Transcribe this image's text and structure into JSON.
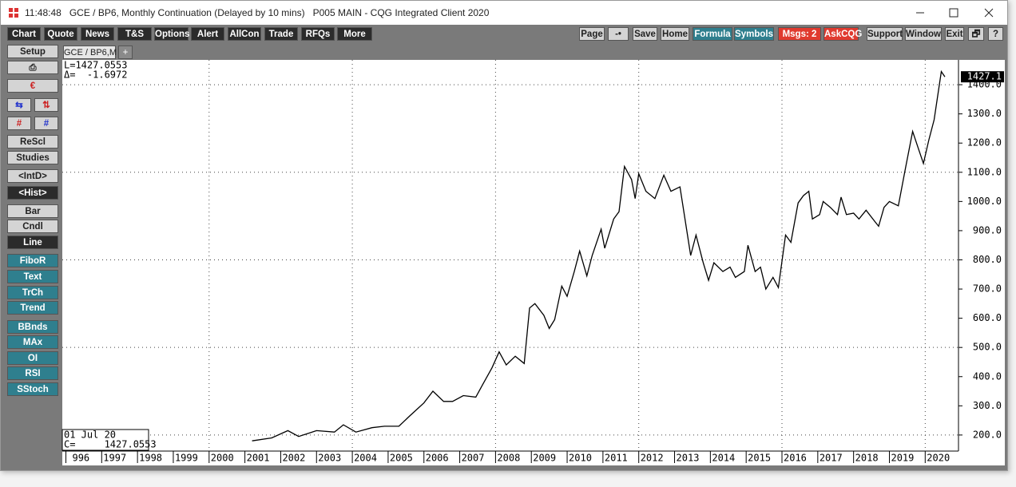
{
  "window": {
    "title": "11:48:48   GCE / BP6, Monthly Continuation (Delayed by 10 mins)   P005 MAIN - CQG Integrated Client 2020"
  },
  "toolbar": {
    "left": [
      "Chart",
      "Quote",
      "News",
      "T&S",
      "Options",
      "Alert",
      "AllCon",
      "Trade",
      "RFQs",
      "More"
    ],
    "right": [
      "Page",
      "Save",
      "Home",
      "Formula",
      "Symbols",
      "Msgs: 2",
      "AskCQG",
      "Support",
      "Window",
      "Exit",
      "?"
    ]
  },
  "sidebar": {
    "buttons": [
      "Setup",
      "ReScl",
      "Studies",
      "<IntD>",
      "<Hist>",
      "Bar",
      "Cndl",
      "Line",
      "FiboR",
      "Text",
      "TrCh",
      "Trend",
      "BBnds",
      "MAx",
      "OI",
      "RSI",
      "SStoch"
    ]
  },
  "tabs": [
    "GCE / BP6,M",
    "+"
  ],
  "chart_data": {
    "type": "line",
    "info_top": [
      "L=1427.0553",
      "Δ=  -1.6972"
    ],
    "info_bottom": [
      "01 Jul 20",
      "C=     1427.0553"
    ],
    "last_label": "1427.1",
    "x": [
      2001.2,
      2001.75,
      2002.2,
      2002.5,
      2003.0,
      2003.5,
      2003.75,
      2004.1,
      2004.55,
      2004.9,
      2005.3,
      2005.6,
      2006.0,
      2006.25,
      2006.55,
      2006.8,
      2007.1,
      2007.45,
      2007.65,
      2007.9,
      2008.1,
      2008.3,
      2008.55,
      2008.8,
      2008.95,
      2009.1,
      2009.35,
      2009.5,
      2009.65,
      2009.85,
      2010.0,
      2010.2,
      2010.35,
      2010.55,
      2010.7,
      2010.95,
      2011.05,
      2011.3,
      2011.45,
      2011.6,
      2011.8,
      2011.9,
      2012.0,
      2012.2,
      2012.45,
      2012.7,
      2012.9,
      2013.15,
      2013.45,
      2013.6,
      2013.8,
      2013.95,
      2014.1,
      2014.35,
      2014.55,
      2014.7,
      2014.95,
      2015.05,
      2015.25,
      2015.4,
      2015.55,
      2015.75,
      2015.9,
      2016.1,
      2016.25,
      2016.45,
      2016.6,
      2016.75,
      2016.85,
      2017.05,
      2017.15,
      2017.35,
      2017.55,
      2017.65,
      2017.8,
      2018.0,
      2018.15,
      2018.35,
      2018.6,
      2018.7,
      2018.85,
      2019.0,
      2019.25,
      2019.45,
      2019.65,
      2019.8,
      2019.95,
      2020.1,
      2020.25,
      2020.45,
      2020.55
    ],
    "series": [
      {
        "name": "GCE / BP6,M",
        "color": "#000000",
        "values": [
          180,
          190,
          215,
          195,
          215,
          210,
          235,
          210,
          225,
          230,
          230,
          265,
          310,
          350,
          315,
          315,
          335,
          330,
          375,
          430,
          485,
          440,
          470,
          445,
          635,
          650,
          610,
          565,
          595,
          710,
          675,
          760,
          830,
          745,
          815,
          905,
          840,
          940,
          965,
          1120,
          1075,
          1010,
          1095,
          1035,
          1010,
          1090,
          1035,
          1050,
          815,
          885,
          790,
          730,
          790,
          760,
          775,
          740,
          760,
          850,
          760,
          775,
          700,
          740,
          705,
          885,
          860,
          995,
          1020,
          1035,
          940,
          955,
          1000,
          980,
          955,
          1015,
          955,
          960,
          940,
          970,
          930,
          915,
          980,
          1000,
          985,
          1115,
          1240,
          1185,
          1130,
          1210,
          1280,
          1445,
          1427.0553
        ]
      }
    ],
    "xlim": [
      1995.9,
      2020.93
    ],
    "ylim": [
      145,
      1485
    ],
    "xticks": [
      {
        "value": 1996,
        "label": "996"
      },
      1997,
      1998,
      1999,
      2000,
      2001,
      2002,
      2003,
      2004,
      2005,
      2006,
      2007,
      2008,
      2009,
      2010,
      2011,
      2012,
      2013,
      2014,
      2015,
      2016,
      2017,
      2018,
      2019,
      2020
    ],
    "yticks": [
      {
        "value": 200,
        "label": "200.0"
      },
      {
        "value": 300,
        "label": "300.0"
      },
      {
        "value": 400,
        "label": "400.0"
      },
      {
        "value": 500,
        "label": "500.0"
      },
      {
        "value": 600,
        "label": "600.0"
      },
      {
        "value": 700,
        "label": "700.0"
      },
      {
        "value": 800,
        "label": "800.0"
      },
      {
        "value": 900,
        "label": "900.0"
      },
      {
        "value": 1000,
        "label": "1000.0"
      },
      {
        "value": 1100,
        "label": "1100.0"
      },
      {
        "value": 1200,
        "label": "1200.0"
      },
      {
        "value": 1300,
        "label": "1300.0"
      },
      {
        "value": 1400,
        "label": "1400.0"
      }
    ],
    "xgrid": [
      2000,
      2004,
      2008,
      2012,
      2016,
      2020
    ],
    "ygrid": [
      200,
      500,
      800,
      1100,
      1400
    ]
  }
}
